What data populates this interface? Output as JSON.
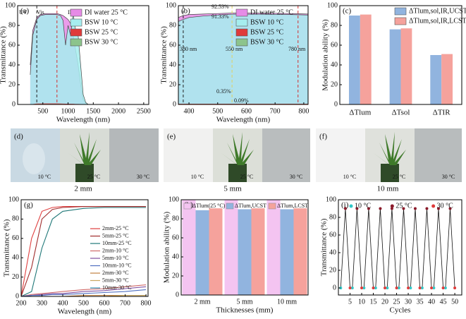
{
  "chart_data": [
    {
      "type": "line",
      "panel": "(a)",
      "xlabel": "Wavelength (nm)",
      "ylabel": "Transmittance (%)",
      "xlim": [
        0,
        2600
      ],
      "xticks": [
        500,
        1000,
        1500,
        2000,
        2500
      ],
      "ylim": [
        0,
        100
      ],
      "yticks": [
        0,
        20,
        40,
        60,
        80,
        100
      ],
      "x": [
        250,
        300,
        380,
        450,
        550,
        650,
        780,
        850,
        900,
        950,
        1000,
        1050,
        1100,
        1150,
        1200,
        1250,
        1300,
        1350,
        1400,
        1600,
        2000,
        2500
      ],
      "series": [
        {
          "name": "DI water 25 °C",
          "color": "#e68be6",
          "fill": true,
          "values": [
            40,
            75,
            88,
            91,
            92,
            92,
            92,
            91,
            90,
            88,
            86,
            82,
            70,
            55,
            40,
            20,
            5,
            1,
            0,
            0,
            0,
            0
          ]
        },
        {
          "name": "BSW    10 °C",
          "color": "#a6eeef",
          "fill": true,
          "values": [
            30,
            70,
            86,
            90,
            91,
            91,
            91,
            90,
            85,
            60,
            80,
            70,
            92,
            75,
            70,
            40,
            10,
            2,
            0,
            0,
            0,
            0
          ]
        },
        {
          "name": "BSW    25 °C",
          "color": "#e03a3a",
          "fill": false,
          "values": [
            0,
            0,
            0.5,
            0.5,
            0.6,
            0.6,
            0.6,
            0.5,
            0.4,
            0.3,
            0.3,
            0.2,
            0.2,
            0.1,
            0.1,
            0,
            0,
            0,
            0,
            0,
            0,
            0
          ]
        },
        {
          "name": "BSW    30 °C",
          "color": "#8cc48c",
          "fill": false,
          "values": [
            0,
            0,
            0.1,
            0.1,
            0.1,
            0.1,
            0.1,
            0.1,
            0.1,
            0,
            0,
            0,
            0,
            0,
            0,
            0,
            0,
            0,
            0,
            0,
            0,
            0
          ]
        }
      ],
      "vlines": [
        {
          "value": 380,
          "color": "#222222"
        },
        {
          "value": 780,
          "color": "#d03030"
        }
      ],
      "annotations": [
        "UV",
        "Vis",
        "IR"
      ],
      "legend": "upper-right"
    },
    {
      "type": "line",
      "panel": "(b)",
      "xlabel": "Wavelength (nm)",
      "ylabel": "Transmittance (%)",
      "xlim": [
        363,
        815
      ],
      "xticks": [
        400,
        500,
        600,
        700,
        800
      ],
      "ylim": [
        0,
        100
      ],
      "yticks": [
        0,
        20,
        40,
        60,
        80,
        100
      ],
      "x": [
        363,
        380,
        400,
        450,
        500,
        550,
        600,
        650,
        700,
        750,
        780,
        815
      ],
      "series": [
        {
          "name": "DI water 25 °C",
          "color": "#e68be6",
          "fill": true,
          "values": [
            88,
            90,
            91,
            91.5,
            92,
            92.5,
            92.5,
            92.5,
            92.3,
            92,
            91.8,
            91.5
          ]
        },
        {
          "name": "BSW    10 °C",
          "color": "#a6eeef",
          "fill": true,
          "values": [
            84,
            86,
            88,
            89.5,
            90.5,
            91.3,
            91.3,
            91.3,
            91.2,
            91,
            90.8,
            90.5
          ]
        },
        {
          "name": "BSW    25 °C",
          "color": "#e03a3a",
          "fill": false,
          "values": [
            0.3,
            0.3,
            0.35,
            0.35,
            0.35,
            0.35,
            0.35,
            0.35,
            0.35,
            0.35,
            0.35,
            0.35
          ]
        },
        {
          "name": "BSW    30 °C",
          "color": "#8cc48c",
          "fill": false,
          "values": [
            0.05,
            0.08,
            0.09,
            0.09,
            0.09,
            0.09,
            0.09,
            0.09,
            0.09,
            0.09,
            0.09,
            0.09
          ]
        }
      ],
      "vlines": [
        {
          "value": 380,
          "color": "#222222"
        },
        {
          "value": 550,
          "color": "#e0d060"
        },
        {
          "value": 780,
          "color": "#d03030"
        }
      ],
      "annotations": [
        "92.53%",
        "91.33%",
        "380 nm",
        "550 nm",
        "780 nm",
        "0.35%",
        "0.09%"
      ],
      "legend": "upper-right"
    },
    {
      "type": "bar",
      "panel": "(c)",
      "ylabel": "Modulation ability (%)",
      "ylim": [
        0,
        100
      ],
      "yticks": [
        0,
        20,
        40,
        60,
        80,
        100
      ],
      "categories": [
        "ΔTlum",
        "ΔTsol",
        "ΔTIR"
      ],
      "series": [
        {
          "name": "ΔTlum,sol,IR,UCST",
          "color": "#91b4df",
          "values": [
            90,
            76,
            50
          ]
        },
        {
          "name": "ΔTlum,sol,IR,LCST",
          "color": "#f5a29c",
          "values": [
            91,
            77,
            51
          ]
        }
      ],
      "legend": "upper-right"
    },
    {
      "type": "line",
      "panel": "(g)",
      "xlabel": "Wavelength (nm)",
      "ylabel": "Transmittance (%)",
      "xlim": [
        200,
        810
      ],
      "xticks": [
        200,
        300,
        400,
        500,
        600,
        700,
        800
      ],
      "ylim": [
        0,
        100
      ],
      "yticks": [
        0,
        20,
        40,
        60,
        80,
        100
      ],
      "x": [
        200,
        250,
        300,
        350,
        400,
        500,
        600,
        700,
        800
      ],
      "series": [
        {
          "name": "2mm-25 °C",
          "color": "#e04040",
          "values": [
            0,
            60,
            88,
            92,
            93,
            93,
            93,
            93,
            93
          ]
        },
        {
          "name": "5mm-25 °C",
          "color": "#a02c2c",
          "values": [
            0,
            30,
            80,
            90,
            92,
            93,
            93,
            93,
            93
          ]
        },
        {
          "name": "10mm-25 °C",
          "color": "#207878",
          "values": [
            0,
            5,
            50,
            80,
            88,
            91,
            92,
            92,
            92
          ]
        },
        {
          "name": "2mm-10 °C",
          "color": "#d06a6a",
          "values": [
            0,
            2,
            3,
            4,
            5,
            7,
            8,
            10,
            12
          ]
        },
        {
          "name": "5mm-10 °C",
          "color": "#8050a0",
          "values": [
            0,
            1,
            2,
            3,
            3,
            5,
            6,
            8,
            10
          ]
        },
        {
          "name": "10mm-10 °C",
          "color": "#4f6fc0",
          "values": [
            0,
            1,
            1,
            2,
            2,
            3,
            4,
            5,
            7
          ]
        },
        {
          "name": "2mm-30 °C",
          "color": "#c08040",
          "values": [
            0,
            0,
            0,
            0,
            0,
            1,
            1,
            1,
            1
          ]
        },
        {
          "name": "5mm-30 °C",
          "color": "#c8a860",
          "values": [
            0,
            0,
            0,
            0,
            0,
            0,
            0,
            1,
            1
          ]
        },
        {
          "name": "10mm-30 °C",
          "color": "#3090b0",
          "values": [
            0,
            0,
            0,
            0,
            0,
            0,
            0,
            0,
            0
          ]
        }
      ],
      "legend": "right"
    },
    {
      "type": "bar",
      "panel": "(h)",
      "xlabel": "Thicknesses (mm)",
      "ylabel": "Modulation ability (%)",
      "ylim": [
        0,
        100
      ],
      "yticks": [
        0,
        20,
        40,
        60,
        80,
        100
      ],
      "categories": [
        "2 mm",
        "5 mm",
        "10 mm"
      ],
      "series": [
        {
          "name": "ΔTlum(25 °C)",
          "color": "#f4c4f1",
          "values": [
            100,
            100,
            100
          ]
        },
        {
          "name": "ΔTlum,UCST",
          "color": "#91b4df",
          "values": [
            89,
            90,
            90
          ]
        },
        {
          "name": "ΔTlum,LCST",
          "color": "#f5a29c",
          "values": [
            91,
            91,
            91
          ]
        }
      ],
      "legend": "upper-center"
    },
    {
      "type": "scatter",
      "panel": "(i)",
      "xlabel": "Cycles",
      "ylabel": "Transmittance (%)",
      "xlim": [
        0,
        53
      ],
      "xticks": [
        5,
        10,
        15,
        20,
        25,
        30,
        35,
        40,
        45,
        50
      ],
      "ylim": [
        -8,
        100
      ],
      "yticks": [
        0,
        20,
        40,
        60,
        80,
        100
      ],
      "series": [
        {
          "name": "10 °C",
          "color": "#30c8c8",
          "x": [
            1,
            6,
            11,
            16,
            21,
            26,
            31,
            36,
            41,
            46
          ],
          "values": [
            0,
            0,
            0,
            0,
            0,
            0,
            0,
            0,
            0,
            0
          ]
        },
        {
          "name": "25 °C",
          "color": "#8b1a2a",
          "x": [
            3,
            8,
            13,
            18,
            23,
            28,
            33,
            38,
            43,
            48
          ],
          "values": [
            90,
            90,
            90,
            90,
            90,
            90,
            90,
            90,
            90,
            90
          ]
        },
        {
          "name": "30 °C",
          "color": "#e03a3a",
          "x": [
            5,
            10,
            15,
            20,
            25,
            30,
            35,
            40,
            45,
            50
          ],
          "values": [
            0,
            0,
            0,
            0,
            0,
            0,
            0,
            0,
            0,
            0
          ]
        }
      ],
      "connect": true,
      "legend": "upper-center"
    }
  ],
  "photos": {
    "panels": [
      {
        "label": "(d)",
        "temps": [
          "10 °C",
          "25 °C",
          "30 °C"
        ],
        "thickness": "2 mm"
      },
      {
        "label": "(e)",
        "temps": [
          "10 °C",
          "25 °C",
          "30 °C"
        ],
        "thickness": "5 mm"
      },
      {
        "label": "(f)",
        "temps": [
          "10 °C",
          "25 °C",
          "30 °C"
        ],
        "thickness": "10 mm"
      }
    ]
  }
}
